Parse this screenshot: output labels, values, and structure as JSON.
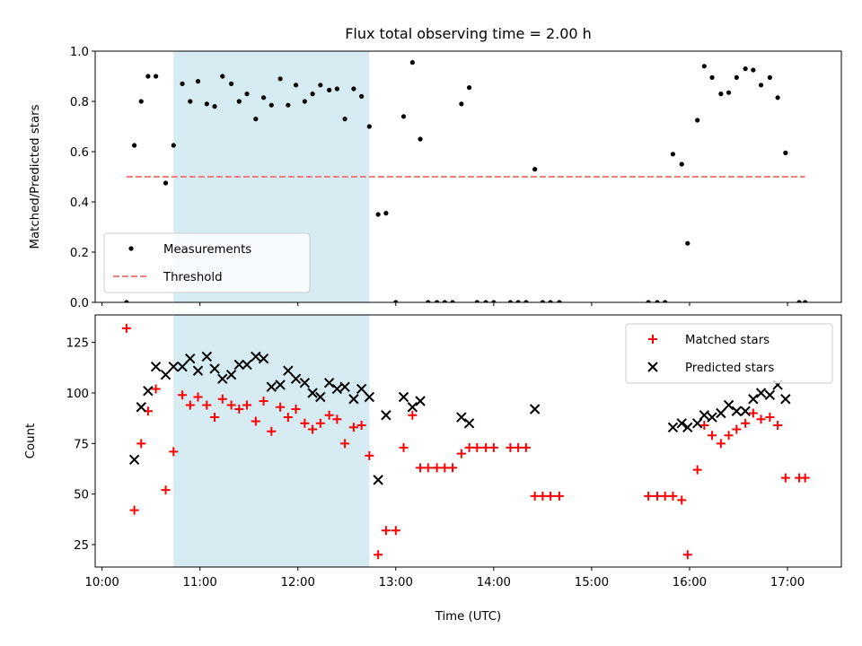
{
  "chart_data": {
    "type": "scatter",
    "title": "Flux total observing time = 2.00 h",
    "xlabel": "Time (UTC)",
    "x_tick_labels": [
      "10:00",
      "11:00",
      "12:00",
      "13:00",
      "14:00",
      "15:00",
      "16:00",
      "17:00"
    ],
    "x_range_hours": [
      9.93,
      17.55
    ],
    "highlight_span_hours": [
      10.73,
      12.73
    ],
    "highlight_color": "#add8e6",
    "panels": [
      {
        "ylabel": "Matched/Predicted stars",
        "ylim": [
          0,
          1
        ],
        "y_tick_labels": [
          "0.0",
          "0.2",
          "0.4",
          "0.6",
          "0.8",
          "1.0"
        ],
        "legend_position": "lower-left",
        "series": [
          {
            "name": "Measurements",
            "marker": "dot",
            "color": "#000000",
            "points": [
              [
                10.25,
                0.0
              ],
              [
                10.33,
                0.625
              ],
              [
                10.4,
                0.8
              ],
              [
                10.47,
                0.9
              ],
              [
                10.55,
                0.9
              ],
              [
                10.65,
                0.475
              ],
              [
                10.73,
                0.625
              ],
              [
                10.82,
                0.87
              ],
              [
                10.9,
                0.8
              ],
              [
                10.98,
                0.88
              ],
              [
                11.07,
                0.79
              ],
              [
                11.15,
                0.78
              ],
              [
                11.23,
                0.9
              ],
              [
                11.32,
                0.87
              ],
              [
                11.4,
                0.8
              ],
              [
                11.48,
                0.83
              ],
              [
                11.57,
                0.73
              ],
              [
                11.65,
                0.815
              ],
              [
                11.73,
                0.785
              ],
              [
                11.82,
                0.89
              ],
              [
                11.9,
                0.785
              ],
              [
                11.98,
                0.865
              ],
              [
                12.07,
                0.8
              ],
              [
                12.15,
                0.83
              ],
              [
                12.23,
                0.865
              ],
              [
                12.32,
                0.845
              ],
              [
                12.4,
                0.85
              ],
              [
                12.48,
                0.73
              ],
              [
                12.57,
                0.85
              ],
              [
                12.65,
                0.82
              ],
              [
                12.73,
                0.7
              ],
              [
                12.82,
                0.35
              ],
              [
                12.9,
                0.355
              ],
              [
                13.0,
                0.0
              ],
              [
                13.08,
                0.74
              ],
              [
                13.17,
                0.955
              ],
              [
                13.25,
                0.65
              ],
              [
                13.33,
                0.0
              ],
              [
                13.42,
                0.0
              ],
              [
                13.5,
                0.0
              ],
              [
                13.58,
                0.0
              ],
              [
                13.67,
                0.79
              ],
              [
                13.75,
                0.855
              ],
              [
                13.83,
                0.0
              ],
              [
                13.92,
                0.0
              ],
              [
                14.0,
                0.0
              ],
              [
                14.17,
                0.0
              ],
              [
                14.25,
                0.0
              ],
              [
                14.33,
                0.0
              ],
              [
                14.42,
                0.53
              ],
              [
                14.5,
                0.0
              ],
              [
                14.58,
                0.0
              ],
              [
                14.67,
                0.0
              ],
              [
                15.58,
                0.0
              ],
              [
                15.67,
                0.0
              ],
              [
                15.75,
                0.0
              ],
              [
                15.83,
                0.59
              ],
              [
                15.92,
                0.55
              ],
              [
                15.98,
                0.235
              ],
              [
                16.08,
                0.725
              ],
              [
                16.15,
                0.94
              ],
              [
                16.23,
                0.895
              ],
              [
                16.32,
                0.83
              ],
              [
                16.4,
                0.835
              ],
              [
                16.48,
                0.895
              ],
              [
                16.57,
                0.93
              ],
              [
                16.65,
                0.925
              ],
              [
                16.73,
                0.865
              ],
              [
                16.82,
                0.895
              ],
              [
                16.9,
                0.815
              ],
              [
                16.98,
                0.595
              ],
              [
                17.12,
                0.0
              ],
              [
                17.18,
                0.0
              ]
            ]
          },
          {
            "name": "Threshold",
            "marker": "dashed-line",
            "color": "#f08080",
            "points": [
              [
                10.25,
                0.5
              ],
              [
                17.18,
                0.5
              ]
            ]
          }
        ]
      },
      {
        "ylabel": "Count",
        "ylim": [
          13.9,
          138.6
        ],
        "y_tick_labels": [
          "25",
          "50",
          "75",
          "100",
          "125"
        ],
        "legend_position": "upper-right",
        "series": [
          {
            "name": "Matched stars",
            "marker": "plus",
            "color": "#ff0000",
            "points": [
              [
                10.25,
                132
              ],
              [
                10.33,
                42
              ],
              [
                10.4,
                75
              ],
              [
                10.47,
                91
              ],
              [
                10.55,
                102
              ],
              [
                10.65,
                52
              ],
              [
                10.73,
                71
              ],
              [
                10.82,
                99
              ],
              [
                10.9,
                94
              ],
              [
                10.98,
                98
              ],
              [
                11.07,
                94
              ],
              [
                11.15,
                88
              ],
              [
                11.23,
                97
              ],
              [
                11.32,
                94
              ],
              [
                11.4,
                92
              ],
              [
                11.48,
                94
              ],
              [
                11.57,
                86
              ],
              [
                11.65,
                96
              ],
              [
                11.73,
                81
              ],
              [
                11.82,
                93
              ],
              [
                11.9,
                88
              ],
              [
                11.98,
                92
              ],
              [
                12.07,
                85
              ],
              [
                12.15,
                82
              ],
              [
                12.23,
                85
              ],
              [
                12.32,
                89
              ],
              [
                12.4,
                87
              ],
              [
                12.48,
                75
              ],
              [
                12.57,
                83
              ],
              [
                12.65,
                84
              ],
              [
                12.73,
                69
              ],
              [
                12.82,
                20
              ],
              [
                12.9,
                32
              ],
              [
                13.0,
                32
              ],
              [
                13.08,
                73
              ],
              [
                13.17,
                89
              ],
              [
                13.25,
                63
              ],
              [
                13.33,
                63
              ],
              [
                13.42,
                63
              ],
              [
                13.5,
                63
              ],
              [
                13.58,
                63
              ],
              [
                13.67,
                70
              ],
              [
                13.75,
                73
              ],
              [
                13.83,
                73
              ],
              [
                13.92,
                73
              ],
              [
                14.0,
                73
              ],
              [
                14.17,
                73
              ],
              [
                14.25,
                73
              ],
              [
                14.33,
                73
              ],
              [
                14.42,
                49
              ],
              [
                14.5,
                49
              ],
              [
                14.58,
                49
              ],
              [
                14.67,
                49
              ],
              [
                15.58,
                49
              ],
              [
                15.67,
                49
              ],
              [
                15.75,
                49
              ],
              [
                15.83,
                49
              ],
              [
                15.92,
                47
              ],
              [
                15.98,
                20
              ],
              [
                16.08,
                62
              ],
              [
                16.15,
                84
              ],
              [
                16.23,
                79
              ],
              [
                16.32,
                75
              ],
              [
                16.4,
                79
              ],
              [
                16.48,
                82
              ],
              [
                16.57,
                85
              ],
              [
                16.65,
                90
              ],
              [
                16.73,
                87
              ],
              [
                16.82,
                88
              ],
              [
                16.9,
                84
              ],
              [
                16.98,
                58
              ],
              [
                17.12,
                58
              ],
              [
                17.18,
                58
              ]
            ]
          },
          {
            "name": "Predicted stars",
            "marker": "x",
            "color": "#000000",
            "points": [
              [
                10.33,
                67
              ],
              [
                10.4,
                93
              ],
              [
                10.47,
                101
              ],
              [
                10.55,
                113
              ],
              [
                10.65,
                109
              ],
              [
                10.73,
                113
              ],
              [
                10.82,
                113
              ],
              [
                10.9,
                117
              ],
              [
                10.98,
                111
              ],
              [
                11.07,
                118
              ],
              [
                11.15,
                112
              ],
              [
                11.23,
                107
              ],
              [
                11.32,
                109
              ],
              [
                11.4,
                114
              ],
              [
                11.48,
                114
              ],
              [
                11.57,
                118
              ],
              [
                11.65,
                117
              ],
              [
                11.73,
                103
              ],
              [
                11.82,
                104
              ],
              [
                11.9,
                111
              ],
              [
                11.98,
                107
              ],
              [
                12.07,
                105
              ],
              [
                12.15,
                100
              ],
              [
                12.23,
                98
              ],
              [
                12.32,
                105
              ],
              [
                12.4,
                102
              ],
              [
                12.48,
                103
              ],
              [
                12.57,
                97
              ],
              [
                12.65,
                102
              ],
              [
                12.73,
                98
              ],
              [
                12.82,
                57
              ],
              [
                12.9,
                89
              ],
              [
                13.08,
                98
              ],
              [
                13.17,
                93
              ],
              [
                13.25,
                96
              ],
              [
                13.67,
                88
              ],
              [
                13.75,
                85
              ],
              [
                14.42,
                92
              ],
              [
                15.83,
                83
              ],
              [
                15.92,
                85
              ],
              [
                15.98,
                83
              ],
              [
                16.08,
                85
              ],
              [
                16.15,
                89
              ],
              [
                16.23,
                88
              ],
              [
                16.32,
                90
              ],
              [
                16.4,
                94
              ],
              [
                16.48,
                91
              ],
              [
                16.57,
                91
              ],
              [
                16.65,
                97
              ],
              [
                16.73,
                100
              ],
              [
                16.82,
                99
              ],
              [
                16.9,
                104
              ],
              [
                16.98,
                97
              ]
            ]
          }
        ]
      }
    ]
  }
}
